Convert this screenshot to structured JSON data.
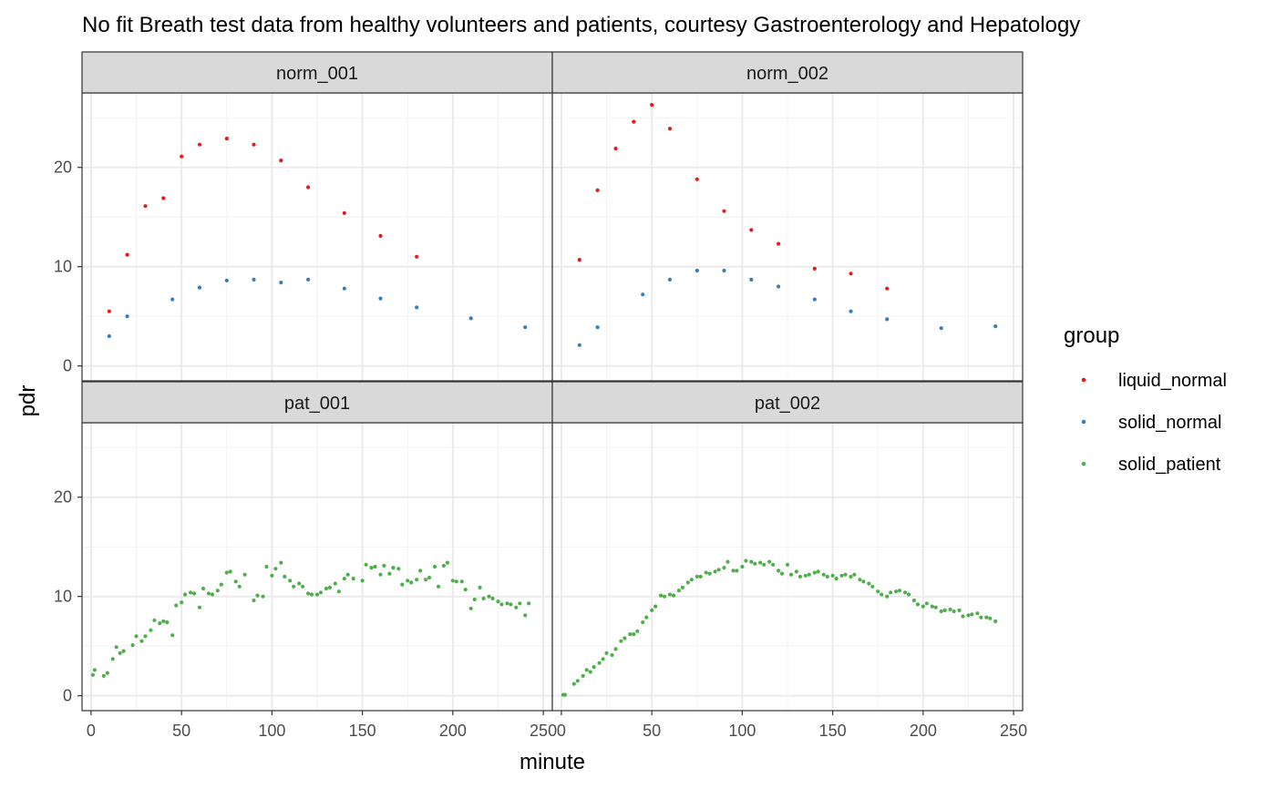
{
  "chart_data": {
    "type": "scatter",
    "title": "No fit  Breath test data from healthy volunteers and patients, courtesy Gastroenterology and Hepatology",
    "xlabel": "minute",
    "ylabel": "pdr",
    "xlim": [
      -5,
      255
    ],
    "ylim": [
      -1.5,
      27.5
    ],
    "x_ticks": [
      0,
      50,
      100,
      150,
      200,
      250
    ],
    "y_ticks": [
      0,
      10,
      20
    ],
    "grid": true,
    "legend": {
      "title": "group",
      "position": "right",
      "entries": [
        {
          "name": "liquid_normal",
          "color": "#E41A1C"
        },
        {
          "name": "solid_normal",
          "color": "#377EB8"
        },
        {
          "name": "solid_patient",
          "color": "#4DAF4A"
        }
      ]
    },
    "panels": [
      {
        "name": "norm_001",
        "series": [
          {
            "name": "liquid_normal",
            "x": [
              10,
              20,
              30,
              40,
              50,
              60,
              75,
              90,
              105,
              120,
              140,
              160,
              180
            ],
            "y": [
              5.5,
              11.2,
              16.1,
              16.9,
              21.1,
              22.3,
              22.9,
              22.3,
              20.7,
              18.0,
              15.4,
              13.1,
              11.0
            ]
          },
          {
            "name": "solid_normal",
            "x": [
              10,
              20,
              45,
              60,
              75,
              90,
              105,
              120,
              140,
              160,
              180,
              210,
              240
            ],
            "y": [
              3.0,
              5.0,
              6.7,
              7.9,
              8.6,
              8.7,
              8.4,
              8.7,
              7.8,
              6.8,
              5.9,
              4.8,
              3.9
            ]
          }
        ]
      },
      {
        "name": "norm_002",
        "series": [
          {
            "name": "liquid_normal",
            "x": [
              10,
              20,
              30,
              40,
              50,
              60,
              75,
              90,
              105,
              120,
              140,
              160,
              180
            ],
            "y": [
              10.7,
              17.7,
              21.9,
              24.6,
              26.3,
              23.9,
              18.8,
              15.6,
              13.7,
              12.3,
              9.8,
              9.3,
              7.8
            ]
          },
          {
            "name": "solid_normal",
            "x": [
              10,
              20,
              45,
              60,
              75,
              90,
              105,
              120,
              140,
              160,
              180,
              210,
              240
            ],
            "y": [
              2.1,
              3.9,
              7.2,
              8.7,
              9.6,
              9.6,
              8.7,
              8.0,
              6.7,
              5.5,
              4.7,
              3.8,
              4.0
            ]
          }
        ]
      },
      {
        "name": "pat_001",
        "series": [
          {
            "name": "solid_patient",
            "x": [
              1,
              2,
              7,
              9,
              12,
              14,
              16,
              18,
              23,
              25,
              28,
              30,
              33,
              35,
              38,
              40,
              42,
              45,
              47,
              50,
              52,
              55,
              57,
              60,
              62,
              65,
              67,
              70,
              72,
              75,
              77,
              80,
              82,
              85,
              90,
              92,
              95,
              97,
              100,
              102,
              105,
              107,
              110,
              112,
              115,
              117,
              120,
              122,
              125,
              127,
              130,
              132,
              135,
              137,
              140,
              142,
              145,
              150,
              152,
              155,
              157,
              160,
              162,
              165,
              167,
              170,
              172,
              175,
              177,
              180,
              182,
              185,
              187,
              190,
              192,
              195,
              197,
              200,
              202,
              205,
              207,
              210,
              212,
              215,
              217,
              220,
              222,
              225,
              227,
              230,
              232,
              235,
              237,
              240,
              242
            ],
            "y": [
              2.1,
              2.6,
              2.0,
              2.3,
              3.7,
              4.9,
              4.3,
              4.5,
              5.1,
              6.0,
              5.5,
              6.0,
              6.6,
              7.6,
              7.3,
              7.5,
              7.4,
              6.1,
              9.1,
              9.4,
              10.2,
              10.4,
              10.3,
              8.9,
              10.8,
              10.3,
              10.2,
              10.6,
              11.2,
              12.4,
              12.5,
              11.5,
              11.0,
              12.2,
              9.6,
              10.1,
              10.0,
              13.0,
              12.1,
              12.8,
              13.4,
              12.0,
              11.6,
              11.0,
              11.3,
              11.0,
              10.3,
              10.2,
              10.2,
              10.4,
              10.8,
              10.9,
              11.3,
              10.5,
              11.8,
              12.2,
              11.8,
              11.6,
              13.2,
              12.9,
              13.0,
              12.2,
              13.1,
              12.3,
              12.9,
              12.8,
              11.2,
              11.6,
              11.4,
              11.7,
              12.6,
              11.7,
              11.9,
              13.0,
              11.0,
              13.1,
              13.4,
              11.6,
              11.5,
              11.5,
              10.7,
              8.8,
              9.7,
              10.9,
              9.8,
              10.0,
              9.8,
              9.5,
              9.2,
              9.3,
              9.2,
              8.9,
              9.3,
              8.1,
              9.3
            ]
          }
        ]
      },
      {
        "name": "pat_002",
        "series": [
          {
            "name": "solid_patient",
            "x": [
              1,
              2,
              7,
              9,
              12,
              14,
              16,
              18,
              21,
              23,
              25,
              28,
              30,
              33,
              35,
              38,
              40,
              42,
              45,
              47,
              50,
              52,
              55,
              57,
              60,
              62,
              65,
              67,
              70,
              72,
              75,
              77,
              80,
              82,
              85,
              87,
              90,
              92,
              95,
              97,
              100,
              102,
              105,
              107,
              110,
              112,
              115,
              117,
              120,
              122,
              125,
              127,
              130,
              132,
              135,
              137,
              140,
              142,
              145,
              147,
              150,
              152,
              155,
              157,
              160,
              162,
              165,
              167,
              170,
              172,
              175,
              177,
              180,
              182,
              185,
              187,
              190,
              192,
              195,
              197,
              200,
              202,
              205,
              207,
              210,
              212,
              215,
              217,
              220,
              222,
              225,
              227,
              230,
              232,
              235,
              237,
              240
            ],
            "y": [
              0.1,
              0.1,
              1.2,
              1.5,
              2.0,
              2.6,
              2.4,
              2.9,
              3.3,
              3.7,
              4.3,
              4.1,
              4.7,
              5.5,
              5.8,
              6.2,
              6.2,
              6.5,
              7.4,
              7.9,
              8.6,
              9.0,
              10.1,
              10.0,
              10.2,
              10.1,
              10.6,
              10.9,
              11.4,
              11.7,
              12.0,
              12.0,
              12.4,
              12.3,
              12.5,
              12.7,
              12.9,
              13.5,
              12.6,
              12.6,
              13.0,
              13.6,
              13.5,
              13.3,
              13.4,
              13.2,
              13.5,
              13.2,
              12.6,
              12.3,
              13.2,
              12.2,
              12.5,
              12.0,
              12.1,
              12.2,
              12.4,
              12.5,
              12.2,
              12.0,
              12.1,
              11.8,
              12.1,
              12.2,
              12.0,
              12.2,
              11.7,
              11.5,
              11.3,
              11.0,
              10.5,
              10.2,
              10.0,
              10.4,
              10.5,
              10.6,
              10.4,
              10.2,
              9.6,
              9.2,
              9.0,
              9.3,
              9.0,
              8.9,
              8.5,
              8.6,
              8.7,
              8.5,
              8.6,
              8.0,
              8.1,
              8.2,
              8.3,
              7.9,
              7.9,
              7.8,
              7.5
            ]
          }
        ]
      }
    ]
  }
}
